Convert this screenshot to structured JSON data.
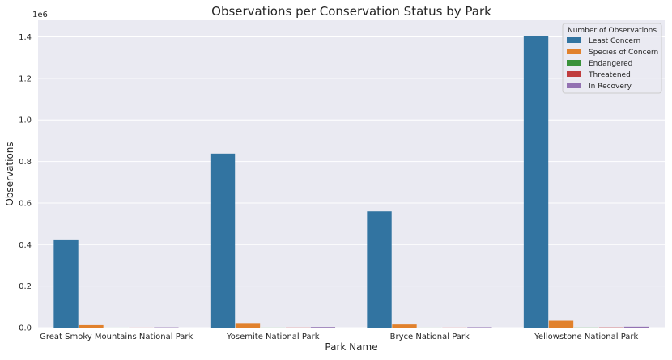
{
  "chart_data": {
    "type": "bar",
    "title": "Observations per Conservation Status by Park",
    "xlabel": "Park Name",
    "ylabel": "Observations",
    "y_offset_label": "1e6",
    "ylim": [
      0,
      1480000
    ],
    "yticks": [
      0,
      200000,
      400000,
      600000,
      800000,
      1000000,
      1200000,
      1400000
    ],
    "ytick_labels": [
      "0.0",
      "0.2",
      "0.4",
      "0.6",
      "0.8",
      "1.0",
      "1.2",
      "1.4"
    ],
    "grid": true,
    "legend": {
      "title": "Number of Observations",
      "placement": "top-right"
    },
    "categories": [
      "Great Smoky Mountains National Park",
      "Yosemite National Park",
      "Bryce National Park",
      "Yellowstone National Park"
    ],
    "series": [
      {
        "name": "Least Concern",
        "color": "#3274a1",
        "values": [
          421000,
          838000,
          560000,
          1405000
        ]
      },
      {
        "name": "Species of Concern",
        "color": "#e1812c",
        "values": [
          12000,
          22000,
          15000,
          33000
        ]
      },
      {
        "name": "Endangered",
        "color": "#3a923a",
        "values": [
          120,
          350,
          220,
          600
        ]
      },
      {
        "name": "Threatened",
        "color": "#c03d3e",
        "values": [
          300,
          700,
          450,
          1200
        ]
      },
      {
        "name": "In Recovery",
        "color": "#9372b2",
        "values": [
          1500,
          3000,
          2000,
          4500
        ]
      }
    ]
  }
}
